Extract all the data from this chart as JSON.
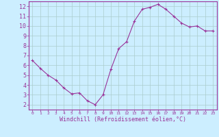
{
  "x": [
    0,
    1,
    2,
    3,
    4,
    5,
    6,
    7,
    8,
    9,
    10,
    11,
    12,
    13,
    14,
    15,
    16,
    17,
    18,
    19,
    20,
    21,
    22,
    23
  ],
  "y": [
    6.5,
    5.7,
    5.0,
    4.5,
    3.7,
    3.1,
    3.2,
    2.4,
    2.0,
    3.0,
    5.6,
    7.7,
    8.4,
    10.5,
    11.7,
    11.9,
    12.2,
    11.7,
    11.0,
    10.3,
    9.9,
    10.0,
    9.5,
    9.5
  ],
  "line_color": "#993399",
  "marker": "+",
  "marker_size": 3.5,
  "linewidth": 0.8,
  "bg_color": "#cceeff",
  "grid_color": "#aacccc",
  "xlabel": "Windchill (Refroidissement éolien,°C)",
  "xlabel_fontsize": 6,
  "ytick_fontsize": 6,
  "xtick_fontsize": 4.5,
  "ylim": [
    1.5,
    12.5
  ],
  "xlim": [
    -0.5,
    23.5
  ],
  "yticks": [
    2,
    3,
    4,
    5,
    6,
    7,
    8,
    9,
    10,
    11,
    12
  ],
  "xticks": [
    0,
    1,
    2,
    3,
    4,
    5,
    6,
    7,
    8,
    9,
    10,
    11,
    12,
    13,
    14,
    15,
    16,
    17,
    18,
    19,
    20,
    21,
    22,
    23
  ],
  "tick_color": "#993399",
  "spine_color": "#993399",
  "label_color": "#993399"
}
